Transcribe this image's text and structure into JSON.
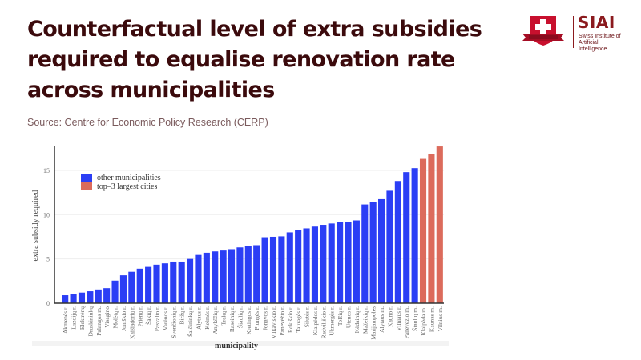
{
  "header": {
    "title": "Counterfactual level of extra subsidies required to equalise renovation rate across municipalities",
    "source": "Source: Centre for Economic Policy Research (CERP)"
  },
  "logo": {
    "name": "SIAI",
    "subtitle_line1": "Swiss Institute of",
    "subtitle_line2": "Artificial Intelligence",
    "icon": "swiss-cross-shield-icon"
  },
  "colors": {
    "title": "#3b0a0c",
    "brand": "#c8102e",
    "other_municipalities": "#2b3ef5",
    "top3_cities": "#dc6b5c"
  },
  "chart_data": {
    "type": "bar",
    "title": "",
    "xlabel": "municipality",
    "ylabel": "extra subsidy required",
    "ylim": [
      0,
      18
    ],
    "yticks": [
      0,
      5,
      10,
      15
    ],
    "grid": true,
    "legend_position": "top-left",
    "legend": [
      {
        "label": "other municipalities",
        "color": "#2b3ef5"
      },
      {
        "label": "top–3 largest cities",
        "color": "#dc6b5c"
      }
    ],
    "categories": [
      "Akmenės r.",
      "Lazdijų r.",
      "Elektrėnų",
      "Druskininkų",
      "Palangos m.",
      "Visagino",
      "Molėtų r.",
      "Joniškio r.",
      "Kaišiadorių r.",
      "Prienų r.",
      "Šakių r.",
      "Pasvalio r.",
      "Varėnos r.",
      "Švenčionių r.",
      "Biržų r.",
      "Šalčininkų r.",
      "Alytaus r.",
      "Kelmės r.",
      "Anykščių r.",
      "Trakų r.",
      "Raseinių r.",
      "Šiaulių r.",
      "Kretingos r.",
      "Plungės r.",
      "Jonavos r.",
      "Vilkaviškio r.",
      "Panevėžio r.",
      "Rokiškio r.",
      "Tauragės r.",
      "Šilutės r.",
      "Klaipėdos r.",
      "Radviliškio r.",
      "Ukmergės r.",
      "Telšių r.",
      "Utenos r.",
      "Kėdainių r.",
      "Mažeikių r.",
      "Marijampolės",
      "Alytaus m.",
      "Kauno r.",
      "Vilniaus r.",
      "Panevėžio m.",
      "Šiaulių m.",
      "Klaipėda m.",
      "Kaunas m.",
      "Vilnius m."
    ],
    "series": [
      {
        "name": "extra subsidy required",
        "values": [
          0.9,
          1.05,
          1.2,
          1.35,
          1.55,
          1.7,
          2.55,
          3.15,
          3.55,
          3.9,
          4.1,
          4.35,
          4.5,
          4.7,
          4.7,
          5.0,
          5.45,
          5.7,
          5.85,
          5.95,
          6.1,
          6.3,
          6.5,
          6.55,
          7.45,
          7.5,
          7.55,
          8.0,
          8.25,
          8.45,
          8.65,
          8.85,
          9.0,
          9.15,
          9.2,
          9.35,
          11.15,
          11.4,
          11.75,
          12.7,
          13.8,
          14.8,
          15.25,
          16.3,
          16.85,
          17.7
        ],
        "groups": [
          "other",
          "other",
          "other",
          "other",
          "other",
          "other",
          "other",
          "other",
          "other",
          "other",
          "other",
          "other",
          "other",
          "other",
          "other",
          "other",
          "other",
          "other",
          "other",
          "other",
          "other",
          "other",
          "other",
          "other",
          "other",
          "other",
          "other",
          "other",
          "other",
          "other",
          "other",
          "other",
          "other",
          "other",
          "other",
          "other",
          "other",
          "other",
          "other",
          "other",
          "other",
          "other",
          "other",
          "top3",
          "top3",
          "top3"
        ]
      }
    ]
  }
}
